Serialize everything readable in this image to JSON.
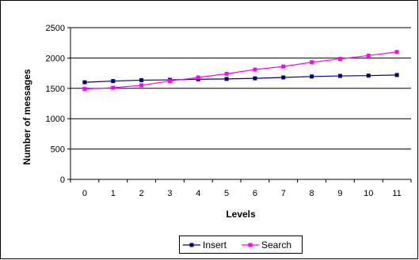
{
  "chart_data": {
    "type": "line",
    "xlabel": "Levels",
    "ylabel": "Number of messages",
    "x": [
      0,
      1,
      2,
      3,
      4,
      5,
      6,
      7,
      8,
      9,
      10,
      11
    ],
    "ylim": [
      0,
      2500
    ],
    "yticks": [
      0,
      500,
      1000,
      1500,
      2000,
      2500
    ],
    "grid": "horizontal",
    "legend_position": "bottom",
    "series": [
      {
        "name": "Insert",
        "color": "#000080",
        "marker": "square",
        "values": [
          1600,
          1620,
          1635,
          1640,
          1650,
          1655,
          1665,
          1680,
          1695,
          1705,
          1710,
          1720
        ]
      },
      {
        "name": "Search",
        "color": "#ff00ff",
        "marker": "square",
        "values": [
          1490,
          1510,
          1550,
          1620,
          1680,
          1740,
          1810,
          1860,
          1930,
          1985,
          2040,
          2100
        ]
      }
    ]
  }
}
